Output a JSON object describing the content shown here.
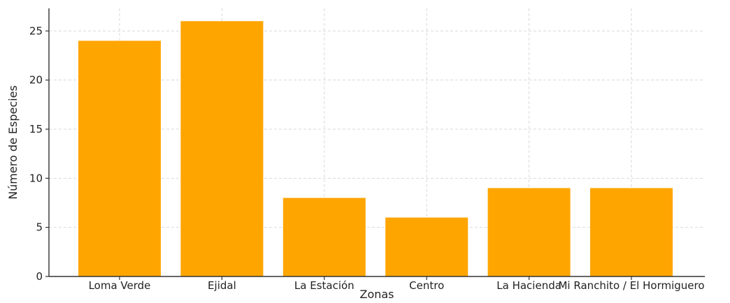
{
  "chart_data": {
    "type": "bar",
    "categories": [
      "Loma Verde",
      "Ejidal",
      "La Estación",
      "Centro",
      "La Hacienda",
      "Mi Ranchito / El Hormiguero"
    ],
    "values": [
      24,
      26,
      8,
      6,
      9,
      9
    ],
    "xlabel": "Zonas",
    "ylabel": "Número de Especies",
    "ylim": [
      0,
      27.3
    ],
    "yticks": [
      0,
      5,
      10,
      15,
      20,
      25
    ],
    "grid": true,
    "bar_color": "#ffa500"
  }
}
